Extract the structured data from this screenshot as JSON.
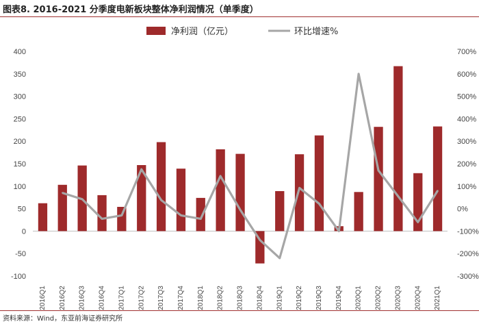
{
  "title": "图表8. 2016-2021 分季度电新板块整体净利润情况（单季度）",
  "source": "资料来源：Wind，东亚前海证券研究所",
  "colors": {
    "bar": "#9e2a2b",
    "line": "#a6a6a6",
    "rule": "#a03030"
  },
  "chart_data": {
    "type": "bar",
    "categories": [
      "2016Q1",
      "2016Q2",
      "2016Q3",
      "2016Q4",
      "2017Q1",
      "2017Q2",
      "2017Q3",
      "2017Q4",
      "2018Q1",
      "2018Q2",
      "2018Q3",
      "2018Q4",
      "2019Q1",
      "2019Q2",
      "2019Q3",
      "2019Q4",
      "2020Q1",
      "2020Q2",
      "2020Q3",
      "2020Q4",
      "2021Q1"
    ],
    "series": [
      {
        "name": "净利润（亿元）",
        "type": "bar",
        "axis": "left",
        "values": [
          62,
          103,
          146,
          80,
          54,
          147,
          198,
          139,
          74,
          182,
          172,
          -72,
          89,
          171,
          213,
          11,
          87,
          232,
          367,
          129,
          233
        ]
      },
      {
        "name": "环比增速%",
        "type": "line",
        "axis": "right",
        "values": [
          null,
          70,
          42,
          -45,
          -30,
          175,
          38,
          -30,
          -45,
          145,
          -5,
          -140,
          -220,
          92,
          22,
          -100,
          600,
          170,
          55,
          -60,
          80
        ]
      }
    ],
    "ylim_left": [
      -100,
      400
    ],
    "yticks_left": [
      "-100",
      "-50",
      "0",
      "50",
      "100",
      "150",
      "200",
      "250",
      "300",
      "350",
      "400"
    ],
    "ylim_right": [
      -300,
      700
    ],
    "yticks_right": [
      "-300%",
      "-200%",
      "-100%",
      "0%",
      "100%",
      "200%",
      "300%",
      "400%",
      "500%",
      "600%",
      "700%"
    ],
    "legend_position": "top-center",
    "grid": false
  }
}
